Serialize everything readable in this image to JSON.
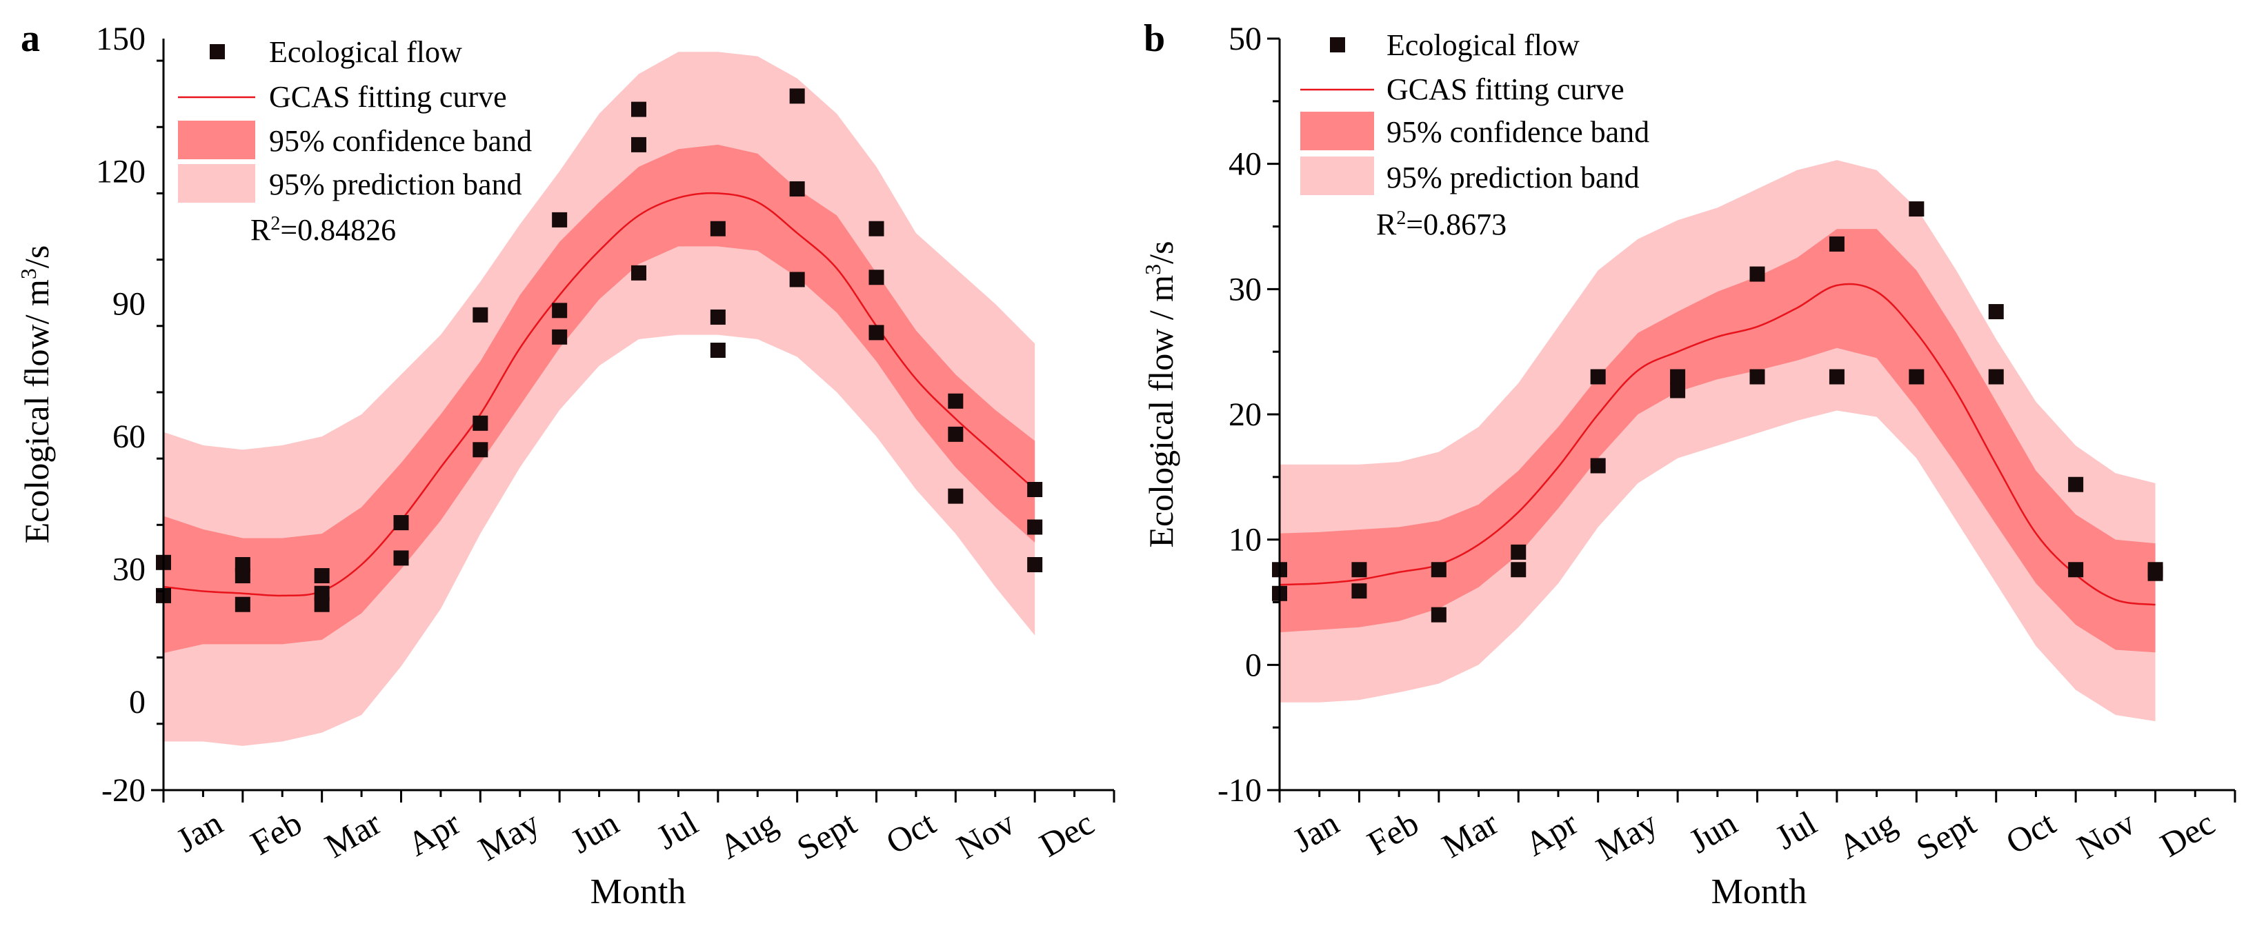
{
  "colors": {
    "curve": "#e8131b",
    "confidence_band": "#ff8587",
    "prediction_band": "#ffc6c7",
    "points": "#170a0a",
    "axis": "#000000"
  },
  "chart_data": [
    {
      "type": "scatter",
      "panel_label": "a",
      "xlabel": "Month",
      "ylabel": "Ecological flow/ m³/s",
      "ylabel_main": "Ecological flow/ m",
      "ylabel_sup": "3",
      "ylabel_tail": "/s",
      "categories": [
        "Jan",
        "Feb",
        "Mar",
        "Apr",
        "May",
        "Jun",
        "Jul",
        "Aug",
        "Sept",
        "Oct",
        "Nov",
        "Dec"
      ],
      "xlim": [
        0.5,
        12.5
      ],
      "ylim": [
        -20,
        150
      ],
      "yticks": [
        -20,
        0,
        30,
        60,
        90,
        120,
        150
      ],
      "legend": {
        "location": "top-left",
        "entries": [
          "Ecological flow",
          "GCAS fitting curve",
          "95% confidence band",
          "95% prediction band"
        ],
        "r2_main": "R",
        "r2_sup": "2",
        "r2_value": "=0.84826"
      },
      "points": [
        [
          0.5,
          31.5
        ],
        [
          0.5,
          24
        ],
        [
          1.5,
          31
        ],
        [
          1.5,
          28.5
        ],
        [
          1.5,
          22
        ],
        [
          2.5,
          28.5
        ],
        [
          2.5,
          24.5
        ],
        [
          2.5,
          22
        ],
        [
          3.5,
          40.5
        ],
        [
          3.5,
          32.5
        ],
        [
          4.5,
          87.5
        ],
        [
          4.5,
          63
        ],
        [
          4.5,
          57
        ],
        [
          5.5,
          109
        ],
        [
          5.5,
          88.5
        ],
        [
          5.5,
          82.5
        ],
        [
          6.5,
          134
        ],
        [
          6.5,
          126
        ],
        [
          6.5,
          97
        ],
        [
          7.5,
          107
        ],
        [
          7.5,
          87
        ],
        [
          7.5,
          79.5
        ],
        [
          8.5,
          137
        ],
        [
          8.5,
          116
        ],
        [
          8.5,
          95.5
        ],
        [
          9.5,
          107
        ],
        [
          9.5,
          96
        ],
        [
          9.5,
          83.5
        ],
        [
          10.5,
          68
        ],
        [
          10.5,
          60.5
        ],
        [
          10.5,
          46.5
        ],
        [
          11.5,
          48
        ],
        [
          11.5,
          39.5
        ],
        [
          11.5,
          31
        ]
      ],
      "fit_curve": {
        "x": [
          0.5,
          1,
          1.5,
          2,
          2.5,
          3,
          3.5,
          4,
          4.5,
          5,
          5.5,
          6,
          6.5,
          7,
          7.5,
          8,
          8.5,
          9,
          9.5,
          10,
          10.5,
          11,
          11.5
        ],
        "y": [
          26,
          25,
          24.5,
          24,
          25,
          31,
          41,
          53,
          65,
          80,
          92,
          102,
          110,
          114,
          115,
          113,
          106,
          98,
          85,
          73,
          64,
          56,
          48
        ]
      },
      "confidence_band": {
        "upper": [
          42,
          39,
          37,
          37,
          38,
          44,
          54,
          65,
          77,
          92,
          104,
          113,
          121,
          125,
          126,
          124,
          116,
          110,
          97,
          84,
          74,
          66,
          59
        ],
        "lower": [
          11,
          13,
          13,
          13,
          14,
          20,
          30,
          41,
          54,
          67,
          80,
          91,
          99,
          103,
          103,
          102,
          96,
          88,
          77,
          64,
          53,
          44,
          36
        ]
      },
      "prediction_band": {
        "upper": [
          61,
          58,
          57,
          58,
          60,
          65,
          74,
          83,
          95,
          108,
          120,
          133,
          142,
          147,
          147,
          146,
          141,
          133,
          121,
          106,
          98,
          90,
          81
        ],
        "lower": [
          -9,
          -9,
          -10,
          -9,
          -7,
          -3,
          8,
          21,
          38,
          53,
          66,
          76,
          82,
          83,
          83,
          82,
          78,
          70,
          60,
          48,
          38,
          26,
          15
        ]
      }
    },
    {
      "type": "scatter",
      "panel_label": "b",
      "xlabel": "Month",
      "ylabel": "Ecological flow / m³/s",
      "ylabel_main": "Ecological flow / m",
      "ylabel_sup": "3",
      "ylabel_tail": "/s",
      "categories": [
        "Jan",
        "Feb",
        "Mar",
        "Apr",
        "May",
        "Jun",
        "Jul",
        "Aug",
        "Sept",
        "Oct",
        "Nov",
        "Dec"
      ],
      "xlim": [
        0.5,
        12.5
      ],
      "ylim": [
        -10,
        50
      ],
      "yticks": [
        -10,
        0,
        10,
        20,
        30,
        40,
        50
      ],
      "legend": {
        "location": "top-left",
        "entries": [
          "Ecological flow",
          "GCAS fitting curve",
          "95% confidence band",
          "95% prediction band"
        ],
        "r2_main": "R",
        "r2_sup": "2",
        "r2_value": "=0.8673"
      },
      "points": [
        [
          0.5,
          7.6
        ],
        [
          0.5,
          5.7
        ],
        [
          1.5,
          7.6
        ],
        [
          1.5,
          5.9
        ],
        [
          2.5,
          7.6
        ],
        [
          2.5,
          4
        ],
        [
          3.5,
          9
        ],
        [
          3.5,
          7.6
        ],
        [
          4.5,
          23
        ],
        [
          4.5,
          15.9
        ],
        [
          5.5,
          23
        ],
        [
          5.5,
          21.9
        ],
        [
          6.5,
          31.2
        ],
        [
          6.5,
          23
        ],
        [
          7.5,
          33.6
        ],
        [
          7.5,
          23
        ],
        [
          8.5,
          36.4
        ],
        [
          8.5,
          23
        ],
        [
          9.5,
          28.2
        ],
        [
          9.5,
          23
        ],
        [
          10.5,
          14.4
        ],
        [
          10.5,
          7.6
        ],
        [
          11.5,
          7.6
        ],
        [
          11.5,
          7.3
        ]
      ],
      "fit_curve": {
        "x": [
          0.5,
          1,
          1.5,
          2,
          2.5,
          3,
          3.5,
          4,
          4.5,
          5,
          5.5,
          6,
          6.5,
          7,
          7.5,
          8,
          8.5,
          9,
          9.5,
          10,
          10.5,
          11,
          11.5
        ],
        "y": [
          6.4,
          6.5,
          6.8,
          7.4,
          8,
          9.6,
          12.2,
          15.8,
          20,
          23.5,
          25,
          26.2,
          27,
          28.5,
          30.3,
          29.8,
          26.5,
          21.8,
          16,
          10.5,
          7.2,
          5.2,
          4.8
        ]
      },
      "confidence_band": {
        "upper": [
          10.5,
          10.6,
          10.8,
          11,
          11.5,
          12.8,
          15.5,
          19,
          23,
          26.5,
          28.2,
          29.8,
          31,
          32.5,
          34.8,
          34.8,
          31.5,
          26.5,
          21,
          15.5,
          12,
          10,
          9.7
        ],
        "lower": [
          2.6,
          2.8,
          3,
          3.5,
          4.5,
          6.2,
          8.8,
          12.5,
          16.5,
          20,
          21.8,
          22.8,
          23.5,
          24.3,
          25.3,
          24.5,
          20.5,
          16,
          11.2,
          6.5,
          3.2,
          1.2,
          1
        ]
      },
      "prediction_band": {
        "upper": [
          16,
          16,
          16,
          16.2,
          17,
          19,
          22.5,
          27,
          31.5,
          34,
          35.5,
          36.5,
          38,
          39.5,
          40.3,
          39.5,
          36.5,
          31.5,
          26,
          21,
          17.5,
          15.3,
          14.5
        ],
        "lower": [
          -3,
          -3,
          -2.8,
          -2.2,
          -1.5,
          0,
          3,
          6.5,
          11,
          14.5,
          16.5,
          17.5,
          18.5,
          19.5,
          20.3,
          19.8,
          16.5,
          11.5,
          6.5,
          1.5,
          -2,
          -4,
          -4.5
        ]
      }
    }
  ]
}
